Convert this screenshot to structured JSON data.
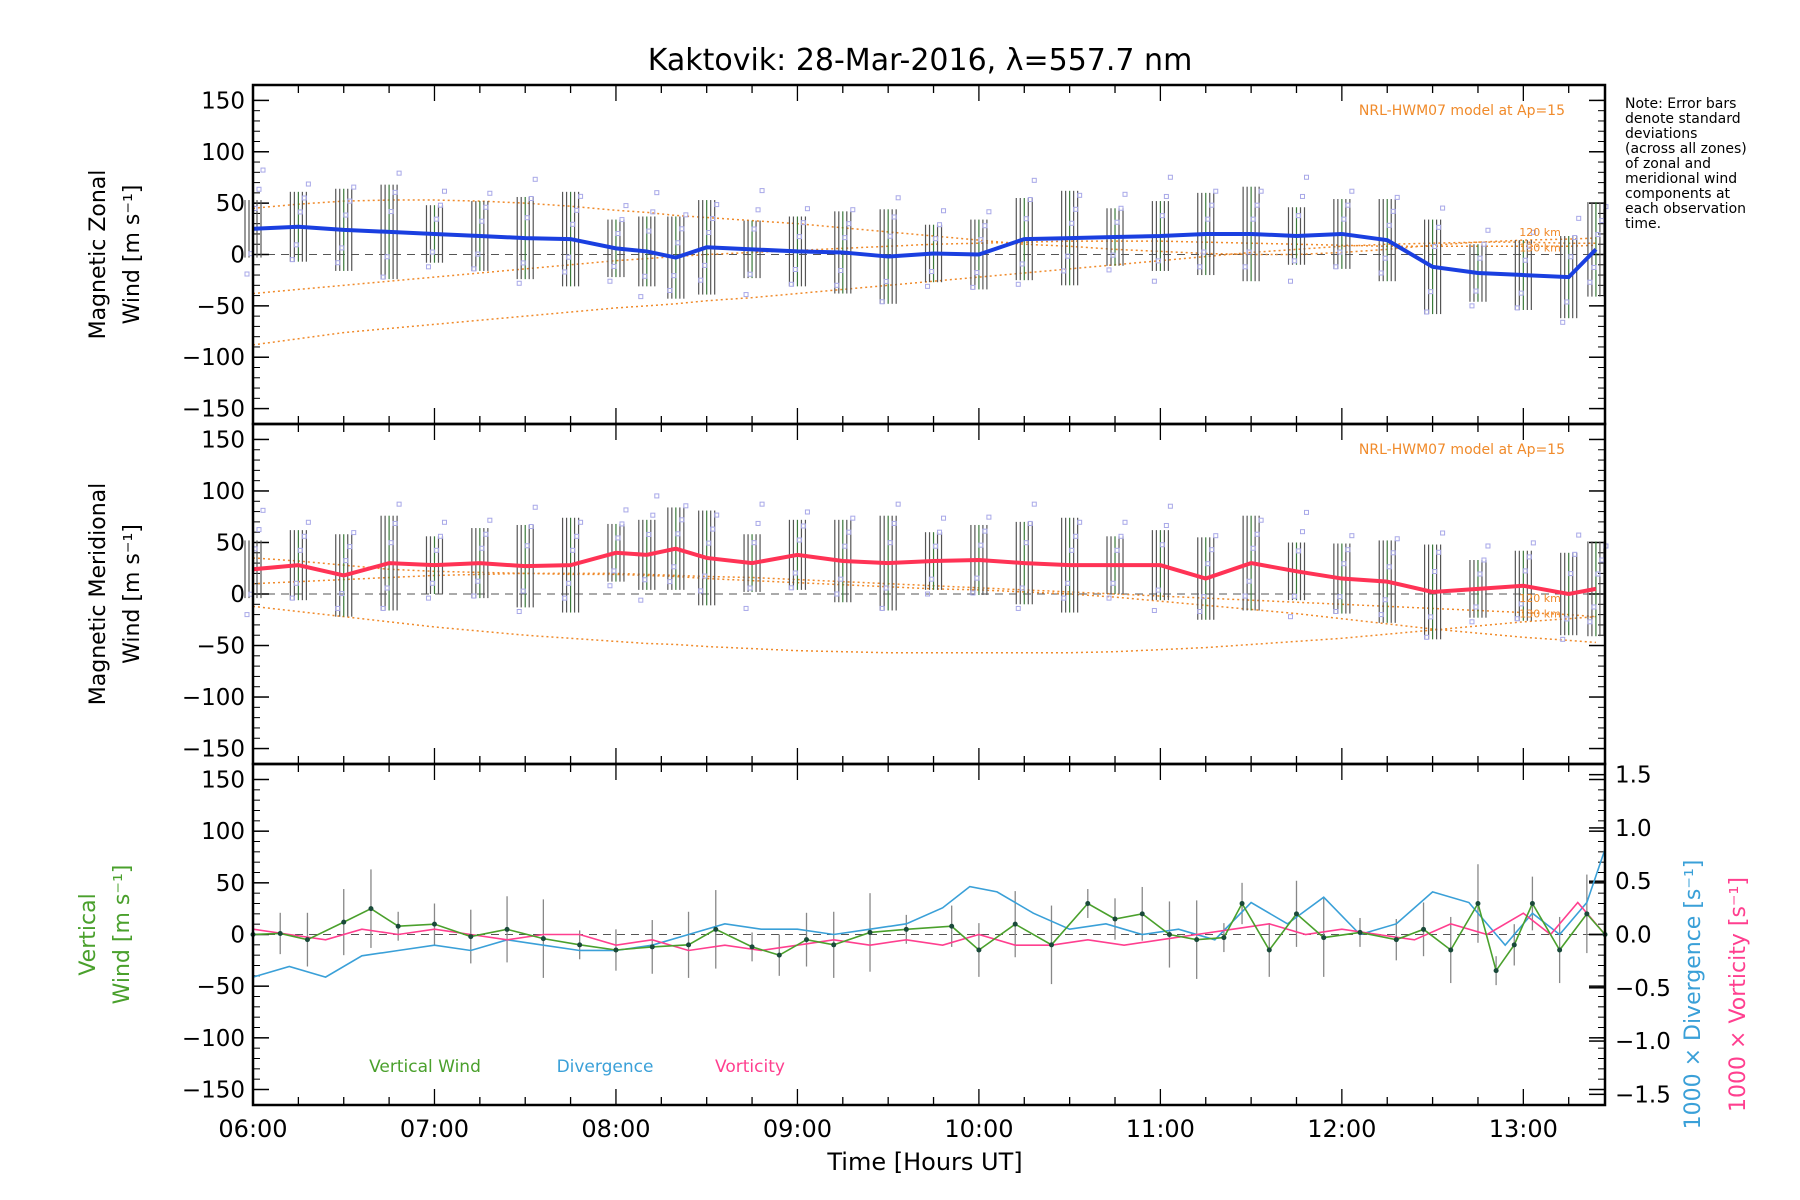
{
  "figure": {
    "title": "Kaktovik: 28-Mar-2016, λ=557.7 nm",
    "xlabel": "Time [Hours UT]",
    "note_lines": [
      "Note: Error bars",
      "denote standard",
      "deviations",
      "(across all zones)",
      "of zonal and",
      "meridional wind",
      "components at",
      "each observation",
      "time."
    ],
    "model_label": "NRL-HWM07 model at Ap=15",
    "alt_labels": [
      "120 km",
      "130 km"
    ],
    "colors": {
      "zonal": "#1a3fe0",
      "meridional": "#ff3355",
      "model": "#f08a2a",
      "vertical": "#4aa02c",
      "divergence": "#3aa0d8",
      "vorticity": "#ff3f8f",
      "zone_markers": "#a8a8e8",
      "errbar": "#555555"
    }
  },
  "chart_data": [
    {
      "type": "line",
      "panel": "zonal",
      "ylabel_lines": [
        "Magnetic Zonal",
        "Wind [m s⁻¹]"
      ],
      "ylim": [
        -165,
        165
      ],
      "yticks": [
        150,
        100,
        50,
        0,
        -50,
        -100,
        -150
      ],
      "xlim": [
        6.0,
        13.45
      ],
      "xticks": [
        "06:00",
        "07:00",
        "08:00",
        "09:00",
        "10:00",
        "11:00",
        "12:00",
        "13:00"
      ],
      "x_hours": [
        6.0,
        6.25,
        6.5,
        6.75,
        7.0,
        7.25,
        7.5,
        7.75,
        8.0,
        8.17,
        8.33,
        8.5,
        8.75,
        9.0,
        9.25,
        9.5,
        9.75,
        10.0,
        10.25,
        10.5,
        10.75,
        11.0,
        11.25,
        11.5,
        11.75,
        12.0,
        12.25,
        12.5,
        12.75,
        13.0,
        13.25,
        13.4
      ],
      "series": [
        {
          "name": "Magnetic Zonal",
          "values": [
            25,
            27,
            24,
            22,
            20,
            18,
            16,
            15,
            6,
            3,
            -3,
            7,
            5,
            3,
            2,
            -2,
            1,
            0,
            15,
            16,
            17,
            18,
            20,
            20,
            18,
            20,
            14,
            -12,
            -18,
            -20,
            -22,
            5
          ]
        }
      ],
      "model_curves": [
        {
          "values": [
            45,
            49,
            52,
            53,
            53,
            52,
            50,
            47,
            43,
            41,
            38,
            36,
            33,
            30,
            26,
            22,
            18,
            14,
            10,
            8,
            5,
            3,
            1,
            0,
            0,
            2,
            5,
            9,
            12,
            14,
            15,
            16
          ]
        },
        {
          "values": [
            -38,
            -34,
            -30,
            -26,
            -22,
            -18,
            -14,
            -10,
            -6,
            -4,
            -2,
            0,
            2,
            4,
            6,
            8,
            10,
            11,
            12,
            13,
            13,
            13,
            12,
            11,
            10,
            9,
            8,
            8,
            8,
            8,
            8,
            9
          ]
        },
        {
          "values": [
            -88,
            -82,
            -76,
            -72,
            -68,
            -64,
            -60,
            -56,
            -52,
            -50,
            -48,
            -45,
            -42,
            -38,
            -34,
            -30,
            -26,
            -22,
            -18,
            -14,
            -10,
            -6,
            -2,
            2,
            5,
            8,
            10,
            11,
            12,
            12,
            11,
            11
          ]
        }
      ]
    },
    {
      "type": "line",
      "panel": "meridional",
      "ylabel_lines": [
        "Magnetic Meridional",
        "Wind [m s⁻¹]"
      ],
      "ylim": [
        -165,
        165
      ],
      "yticks": [
        150,
        100,
        50,
        0,
        -50,
        -100,
        -150
      ],
      "x_hours": [
        6.0,
        6.25,
        6.5,
        6.75,
        7.0,
        7.25,
        7.5,
        7.75,
        8.0,
        8.17,
        8.33,
        8.5,
        8.75,
        9.0,
        9.25,
        9.5,
        9.75,
        10.0,
        10.25,
        10.5,
        10.75,
        11.0,
        11.25,
        11.5,
        11.75,
        12.0,
        12.25,
        12.5,
        12.75,
        13.0,
        13.25,
        13.4
      ],
      "series": [
        {
          "name": "Magnetic Meridional",
          "values": [
            24,
            28,
            18,
            30,
            28,
            30,
            27,
            28,
            40,
            38,
            44,
            35,
            30,
            38,
            32,
            30,
            32,
            33,
            30,
            28,
            28,
            28,
            15,
            30,
            22,
            15,
            12,
            2,
            5,
            8,
            0,
            5
          ]
        }
      ],
      "model_curves": [
        {
          "values": [
            35,
            32,
            28,
            24,
            22,
            21,
            20,
            19,
            19,
            18,
            17,
            15,
            13,
            11,
            9,
            7,
            5,
            4,
            2,
            0,
            -3,
            -7,
            -11,
            -15,
            -19,
            -24,
            -29,
            -34,
            -38,
            -42,
            -45,
            -47
          ]
        },
        {
          "values": [
            10,
            12,
            14,
            16,
            18,
            19,
            20,
            20,
            20,
            19,
            18,
            17,
            16,
            14,
            12,
            10,
            8,
            6,
            4,
            2,
            0,
            -2,
            -4,
            -6,
            -8,
            -10,
            -12,
            -14,
            -16,
            -18,
            -20,
            -22
          ]
        },
        {
          "values": [
            -12,
            -17,
            -22,
            -27,
            -32,
            -36,
            -40,
            -43,
            -46,
            -48,
            -49,
            -51,
            -53,
            -55,
            -56,
            -57,
            -57,
            -57,
            -57,
            -57,
            -56,
            -54,
            -52,
            -49,
            -46,
            -43,
            -39,
            -35,
            -31,
            -27,
            -24,
            -22
          ]
        }
      ]
    },
    {
      "type": "line",
      "panel": "vertical",
      "ylabel_lines": [
        "Vertical",
        "Wind [m s⁻¹]"
      ],
      "ylim": [
        -165,
        165
      ],
      "yticks": [
        150,
        100,
        50,
        0,
        -50,
        -100,
        -150
      ],
      "y2label_lines": [
        "1000 × Divergence [s⁻¹]",
        "1000 × Vorticity [s⁻¹]"
      ],
      "y2lim": [
        -1.6,
        1.6
      ],
      "y2ticks": [
        1.5,
        1.0,
        0.5,
        0.0,
        -0.5,
        -1.0,
        -1.5
      ],
      "legend": [
        "Vertical Wind",
        "Divergence",
        "Vorticity"
      ],
      "series": [
        {
          "name": "Vertical Wind",
          "x": [
            6.0,
            6.15,
            6.3,
            6.5,
            6.65,
            6.8,
            7.0,
            7.2,
            7.4,
            7.6,
            7.8,
            8.0,
            8.2,
            8.4,
            8.55,
            8.75,
            8.9,
            9.05,
            9.2,
            9.4,
            9.6,
            9.85,
            10.0,
            10.2,
            10.4,
            10.6,
            10.75,
            10.9,
            11.05,
            11.2,
            11.35,
            11.45,
            11.6,
            11.75,
            11.9,
            12.1,
            12.3,
            12.45,
            12.6,
            12.75,
            12.85,
            12.95,
            13.05,
            13.2,
            13.35,
            13.45
          ],
          "values": [
            0,
            1,
            -5,
            12,
            25,
            8,
            10,
            -2,
            5,
            -4,
            -10,
            -15,
            -12,
            -10,
            5,
            -12,
            -20,
            -5,
            -10,
            2,
            5,
            8,
            -15,
            10,
            -10,
            30,
            15,
            20,
            0,
            -5,
            -3,
            30,
            -15,
            20,
            -3,
            2,
            -5,
            5,
            -15,
            30,
            -35,
            -10,
            30,
            -15,
            20,
            0
          ]
        },
        {
          "name": "Divergence",
          "x": [
            6.0,
            6.2,
            6.4,
            6.6,
            6.8,
            7.0,
            7.2,
            7.4,
            7.6,
            7.8,
            8.0,
            8.2,
            8.4,
            8.6,
            8.8,
            9.0,
            9.2,
            9.4,
            9.6,
            9.8,
            9.95,
            10.1,
            10.3,
            10.5,
            10.7,
            10.9,
            11.1,
            11.3,
            11.5,
            11.7,
            11.9,
            12.1,
            12.3,
            12.5,
            12.7,
            12.9,
            13.05,
            13.2,
            13.35,
            13.45
          ],
          "values": [
            -0.4,
            -0.3,
            -0.4,
            -0.2,
            -0.15,
            -0.1,
            -0.15,
            -0.05,
            -0.1,
            -0.15,
            -0.15,
            -0.1,
            0.0,
            0.1,
            0.05,
            0.05,
            0.0,
            0.05,
            0.1,
            0.25,
            0.45,
            0.4,
            0.2,
            0.05,
            0.1,
            0.0,
            0.05,
            -0.05,
            0.3,
            0.1,
            0.35,
            0.0,
            0.1,
            0.4,
            0.3,
            -0.1,
            0.2,
            0.0,
            0.3,
            0.8
          ]
        },
        {
          "name": "Vorticity",
          "x": [
            6.0,
            6.2,
            6.4,
            6.6,
            6.8,
            7.0,
            7.2,
            7.4,
            7.6,
            7.8,
            8.0,
            8.2,
            8.4,
            8.6,
            8.8,
            9.0,
            9.2,
            9.4,
            9.6,
            9.8,
            10.0,
            10.2,
            10.4,
            10.6,
            10.8,
            11.0,
            11.2,
            11.4,
            11.6,
            11.8,
            12.0,
            12.2,
            12.4,
            12.6,
            12.8,
            13.0,
            13.15,
            13.3,
            13.45
          ],
          "values": [
            0.05,
            0.0,
            -0.05,
            0.05,
            0.0,
            0.05,
            0.0,
            -0.05,
            0.0,
            0.0,
            -0.1,
            -0.05,
            -0.15,
            -0.1,
            -0.15,
            -0.1,
            -0.05,
            -0.1,
            -0.05,
            -0.1,
            0.0,
            -0.1,
            -0.1,
            -0.05,
            -0.1,
            -0.05,
            0.0,
            0.05,
            0.1,
            0.0,
            0.05,
            0.0,
            -0.05,
            0.1,
            0.0,
            0.2,
            0.0,
            0.3,
            0.0
          ]
        }
      ]
    }
  ]
}
